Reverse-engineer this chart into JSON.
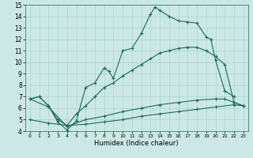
{
  "title": "",
  "xlabel": "Humidex (Indice chaleur)",
  "xlim": [
    -0.5,
    23.5
  ],
  "ylim": [
    4,
    15
  ],
  "xticks": [
    0,
    1,
    2,
    3,
    4,
    5,
    6,
    7,
    8,
    9,
    10,
    11,
    12,
    13,
    14,
    15,
    16,
    17,
    18,
    19,
    20,
    21,
    22,
    23
  ],
  "yticks": [
    4,
    5,
    6,
    7,
    8,
    9,
    10,
    11,
    12,
    13,
    14,
    15
  ],
  "bg_color": "#cce8e4",
  "line_color": "#1a6b5a",
  "grid_color": "#aad4ce",
  "line_main": [
    [
      0,
      6.8
    ],
    [
      1,
      7.0
    ],
    [
      2,
      6.2
    ],
    [
      3,
      4.8
    ],
    [
      4,
      4.1
    ],
    [
      5,
      4.9
    ],
    [
      6,
      7.8
    ],
    [
      7,
      8.2
    ],
    [
      8,
      9.5
    ],
    [
      8.5,
      9.2
    ],
    [
      9,
      8.6
    ],
    [
      10,
      11.0
    ],
    [
      11,
      11.2
    ],
    [
      12,
      12.5
    ],
    [
      13,
      14.2
    ],
    [
      13.5,
      14.8
    ],
    [
      14,
      14.5
    ],
    [
      15,
      14.0
    ],
    [
      16,
      13.6
    ],
    [
      17,
      13.5
    ],
    [
      18,
      13.4
    ],
    [
      19,
      12.2
    ],
    [
      19.5,
      12.0
    ],
    [
      20,
      10.2
    ],
    [
      21,
      7.5
    ],
    [
      22,
      7.0
    ]
  ],
  "line_upper": [
    [
      0,
      6.8
    ],
    [
      1,
      7.0
    ],
    [
      2,
      6.2
    ],
    [
      3,
      5.0
    ],
    [
      4,
      4.5
    ],
    [
      5,
      5.5
    ],
    [
      6,
      6.2
    ],
    [
      7,
      7.0
    ],
    [
      8,
      7.8
    ],
    [
      9,
      8.2
    ],
    [
      10,
      8.8
    ],
    [
      11,
      9.3
    ],
    [
      12,
      9.8
    ],
    [
      13,
      10.3
    ],
    [
      14,
      10.8
    ],
    [
      15,
      11.0
    ],
    [
      16,
      11.2
    ],
    [
      17,
      11.3
    ],
    [
      18,
      11.3
    ],
    [
      19,
      11.0
    ],
    [
      20,
      10.5
    ],
    [
      21,
      9.8
    ],
    [
      22,
      6.5
    ],
    [
      23,
      6.2
    ]
  ],
  "line_lower": [
    [
      0,
      6.8
    ],
    [
      2,
      6.1
    ],
    [
      4,
      4.4
    ],
    [
      6,
      5.0
    ],
    [
      8,
      5.3
    ],
    [
      10,
      5.7
    ],
    [
      12,
      6.0
    ],
    [
      14,
      6.3
    ],
    [
      16,
      6.5
    ],
    [
      18,
      6.7
    ],
    [
      20,
      6.8
    ],
    [
      21,
      6.8
    ],
    [
      22,
      6.5
    ],
    [
      23,
      6.2
    ]
  ],
  "line_flat": [
    [
      0,
      5.0
    ],
    [
      2,
      4.7
    ],
    [
      4,
      4.5
    ],
    [
      6,
      4.6
    ],
    [
      8,
      4.8
    ],
    [
      10,
      5.0
    ],
    [
      12,
      5.3
    ],
    [
      14,
      5.5
    ],
    [
      16,
      5.7
    ],
    [
      18,
      5.9
    ],
    [
      20,
      6.1
    ],
    [
      22,
      6.3
    ],
    [
      23,
      6.2
    ]
  ]
}
